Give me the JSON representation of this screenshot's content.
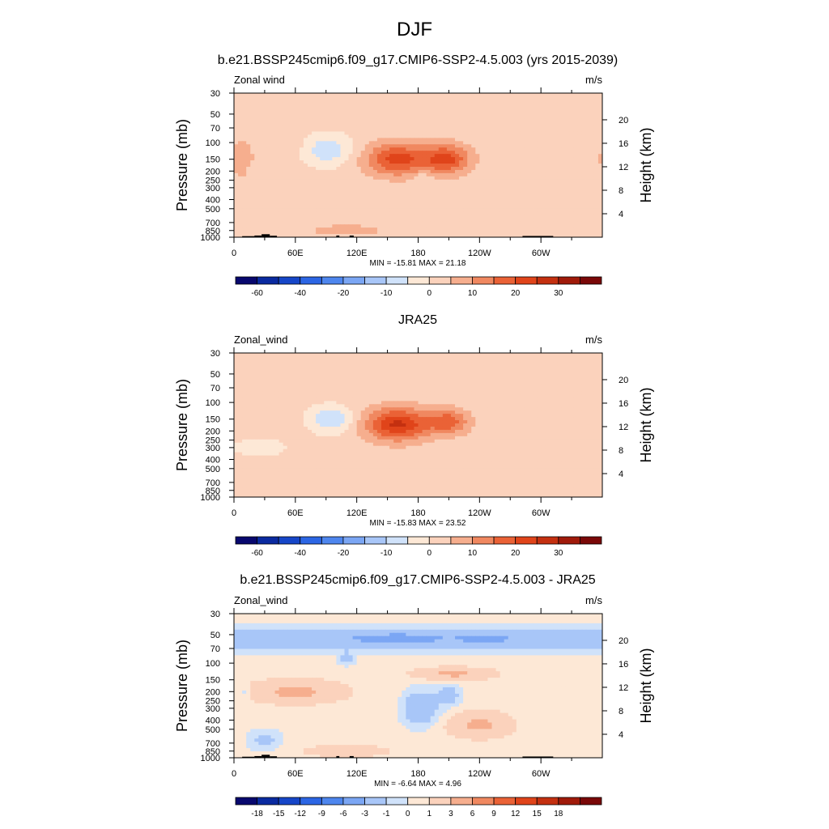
{
  "figure": {
    "title": "DJF"
  },
  "chart_data": [
    {
      "type": "heatmap",
      "title": "b.e21.BSSP245cmip6.f09_g17.CMIP6-SSP2-4.5.003 (yrs 2015-2039)",
      "left_label": "Zonal wind",
      "units": "m/s",
      "ylabel": "Pressure (mb)",
      "ylabel_right": "Height (km)",
      "xticks": [
        "0",
        "60E",
        "120E",
        "180",
        "120W",
        "60W"
      ],
      "yticks": [
        30,
        50,
        70,
        100,
        150,
        200,
        250,
        300,
        400,
        500,
        700,
        850,
        1000
      ],
      "height_ticks": [
        4,
        8,
        12,
        16,
        20
      ],
      "ylim": [
        1000,
        30
      ],
      "stats": "MIN = -15.81  MAX =  21.18",
      "colorbar_labels": [
        "-60",
        "-40",
        "-20",
        "-10",
        "0",
        "10",
        "20",
        "30"
      ],
      "colorbar_levels": [
        -70,
        -60,
        -50,
        -40,
        -30,
        -20,
        -15,
        -10,
        -5,
        0,
        5,
        10,
        15,
        20,
        25,
        30,
        35
      ],
      "colors": [
        "#08086e",
        "#0a2aa0",
        "#1646c8",
        "#2c66e4",
        "#4e86ee",
        "#7ba6f4",
        "#a8c6f8",
        "#d0e2fa",
        "#fde8d6",
        "#fbd2bc",
        "#f6ae8e",
        "#f08860",
        "#ea6236",
        "#e0441a",
        "#c43010",
        "#a01a0a",
        "#7a0808"
      ],
      "field": [
        {
          "lon": 160,
          "p": 150,
          "v": 20,
          "w": 22,
          "h": 0.28
        },
        {
          "lon": 208,
          "p": 150,
          "v": 19,
          "w": 16,
          "h": 0.25
        },
        {
          "lon": 92,
          "p": 120,
          "v": -11,
          "w": 16,
          "h": 0.26
        },
        {
          "lon": 8,
          "p": 150,
          "v": 7,
          "w": 8,
          "h": 0.35
        },
        {
          "lon": 20,
          "p": 200,
          "v": -3,
          "w": 6,
          "h": 0.12
        },
        {
          "lon": 45,
          "p": 100,
          "v": 3,
          "w": 14,
          "h": 0.12
        },
        {
          "lon": 110,
          "p": 850,
          "v": 5,
          "w": 30,
          "h": 0.12
        },
        {
          "lon": 15,
          "p": 850,
          "v": 3,
          "w": 15,
          "h": 0.1
        },
        {
          "lon": 185,
          "p": 225,
          "v": -4,
          "w": 7,
          "h": 0.12
        }
      ]
    },
    {
      "type": "heatmap",
      "title": "JRA25",
      "left_label": "Zonal_wind",
      "units": "m/s",
      "ylabel": "Pressure (mb)",
      "ylabel_right": "Height (km)",
      "xticks": [
        "0",
        "60E",
        "120E",
        "180",
        "120W",
        "60W"
      ],
      "yticks": [
        30,
        50,
        70,
        100,
        150,
        200,
        250,
        300,
        400,
        500,
        700,
        850,
        1000
      ],
      "height_ticks": [
        4,
        8,
        12,
        16,
        20
      ],
      "ylim": [
        1000,
        30
      ],
      "stats": "MIN = -15.83  MAX =  23.52",
      "colorbar_labels": [
        "-60",
        "-40",
        "-20",
        "-10",
        "0",
        "10",
        "20",
        "30"
      ],
      "colorbar_levels": [
        -70,
        -60,
        -50,
        -40,
        -30,
        -20,
        -15,
        -10,
        -5,
        0,
        5,
        10,
        15,
        20,
        25,
        30,
        35
      ],
      "colors": [
        "#08086e",
        "#0a2aa0",
        "#1646c8",
        "#2c66e4",
        "#4e86ee",
        "#7ba6f4",
        "#a8c6f8",
        "#d0e2fa",
        "#fde8d6",
        "#fbd2bc",
        "#f6ae8e",
        "#f08860",
        "#ea6236",
        "#e0441a",
        "#c43010",
        "#a01a0a",
        "#7a0808"
      ],
      "field": [
        {
          "lon": 160,
          "p": 170,
          "v": 24,
          "w": 22,
          "h": 0.28
        },
        {
          "lon": 210,
          "p": 160,
          "v": 15,
          "w": 14,
          "h": 0.22
        },
        {
          "lon": 95,
          "p": 150,
          "v": -12,
          "w": 15,
          "h": 0.22
        },
        {
          "lon": 25,
          "p": 300,
          "v": -3,
          "w": 28,
          "h": 0.25
        },
        {
          "lon": 110,
          "p": 800,
          "v": 3,
          "w": 35,
          "h": 0.1
        },
        {
          "lon": 210,
          "p": 500,
          "v": 3,
          "w": 20,
          "h": 0.15
        }
      ]
    },
    {
      "type": "heatmap",
      "title": "b.e21.BSSP245cmip6.f09_g17.CMIP6-SSP2-4.5.003 - JRA25",
      "left_label": "Zonal_wind",
      "units": "m/s",
      "ylabel": "Pressure (mb)",
      "ylabel_right": "Height (km)",
      "xticks": [
        "0",
        "60E",
        "120E",
        "180",
        "120W",
        "60W"
      ],
      "yticks": [
        30,
        50,
        70,
        100,
        150,
        200,
        250,
        300,
        400,
        500,
        700,
        850,
        1000
      ],
      "height_ticks": [
        4,
        8,
        12,
        16,
        20
      ],
      "ylim": [
        1000,
        30
      ],
      "stats": "MIN =  -6.64  MAX =   4.96",
      "colorbar_labels": [
        "-18",
        "-15",
        "-12",
        "-9",
        "-6",
        "-3",
        "-1",
        "0",
        "1",
        "3",
        "6",
        "9",
        "12",
        "15",
        "18"
      ],
      "colorbar_levels": [
        -21,
        -18,
        -15,
        -12,
        -9,
        -6,
        -3,
        -1,
        0,
        1,
        3,
        6,
        9,
        12,
        15,
        18,
        21
      ],
      "colors": [
        "#08086e",
        "#0a2aa0",
        "#1646c8",
        "#2c66e4",
        "#4e86ee",
        "#7ba6f4",
        "#a8c6f8",
        "#d0e2fa",
        "#fde8d6",
        "#fbd2bc",
        "#f6ae8e",
        "#f08860",
        "#ea6236",
        "#e0441a",
        "#c43010",
        "#a01a0a",
        "#7a0808"
      ],
      "field": [
        {
          "lon": 180,
          "p": 55,
          "v": -3,
          "w": 500,
          "h": 0.2
        },
        {
          "lon": 160,
          "p": 55,
          "v": -2.5,
          "w": 25,
          "h": 0.07
        },
        {
          "lon": 245,
          "p": 55,
          "v": -2,
          "w": 15,
          "h": 0.06
        },
        {
          "lon": 110,
          "p": 90,
          "v": -2,
          "w": 6,
          "h": 0.12
        },
        {
          "lon": 60,
          "p": 200,
          "v": 3.2,
          "w": 30,
          "h": 0.18
        },
        {
          "lon": 215,
          "p": 130,
          "v": 3,
          "w": 25,
          "h": 0.1
        },
        {
          "lon": 240,
          "p": 450,
          "v": 3,
          "w": 20,
          "h": 0.2
        },
        {
          "lon": 182,
          "p": 300,
          "v": -3.5,
          "w": 12,
          "h": 0.3
        },
        {
          "lon": 210,
          "p": 220,
          "v": -2.5,
          "w": 8,
          "h": 0.18
        },
        {
          "lon": 30,
          "p": 650,
          "v": -2,
          "w": 12,
          "h": 0.18
        },
        {
          "lon": 10,
          "p": 200,
          "v": -1.5,
          "w": 4,
          "h": 0.1
        },
        {
          "lon": 110,
          "p": 850,
          "v": 1.5,
          "w": 30,
          "h": 0.1
        }
      ]
    }
  ],
  "topography": [
    {
      "lon0": 8,
      "lon1": 20,
      "p": 975
    },
    {
      "lon0": 20,
      "lon1": 27,
      "p": 960
    },
    {
      "lon0": 27,
      "lon1": 35,
      "p": 930
    },
    {
      "lon0": 35,
      "lon1": 42,
      "p": 965
    },
    {
      "lon0": 100,
      "lon1": 103,
      "p": 960
    },
    {
      "lon0": 113,
      "lon1": 117,
      "p": 960
    },
    {
      "lon0": 282,
      "lon1": 312,
      "p": 970
    }
  ]
}
